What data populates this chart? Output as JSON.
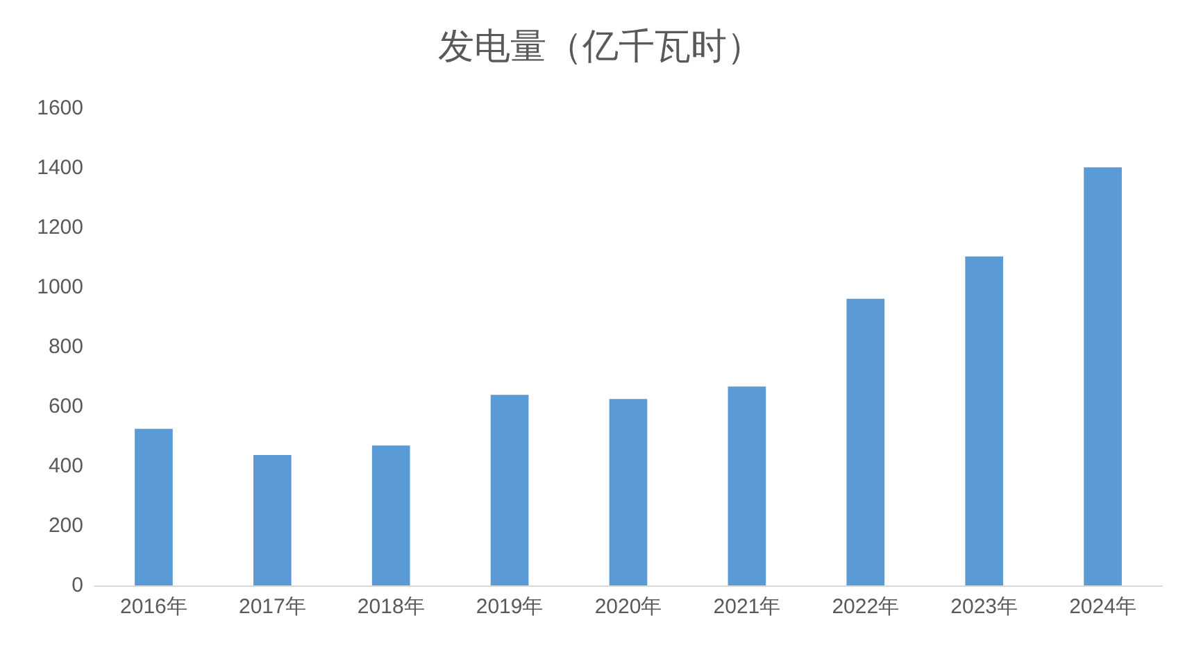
{
  "chart_data": {
    "type": "bar",
    "title": "发电量（亿千瓦时）",
    "categories": [
      "2016年",
      "2017年",
      "2018年",
      "2019年",
      "2020年",
      "2021年",
      "2022年",
      "2023年",
      "2024年"
    ],
    "values": [
      525,
      437,
      469,
      639,
      625,
      667,
      961,
      1103,
      1402
    ],
    "color": "#5b9bd5",
    "ylim": [
      0,
      1600
    ],
    "yticks": [
      0,
      200,
      400,
      600,
      800,
      1000,
      1200,
      1400,
      1600
    ],
    "grid": false
  }
}
